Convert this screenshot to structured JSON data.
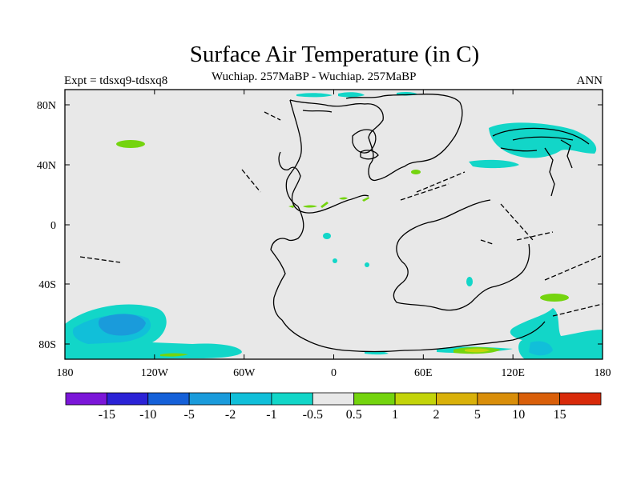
{
  "header": {
    "title": "Surface Air Temperature (in C)",
    "subtitle": "Wuchiap. 257MaBP - Wuchiap. 257MaBP",
    "left_label": "Expt = tdsxq9-tdsxq8",
    "right_label": "ANN"
  },
  "map": {
    "lon_ticks": [
      "180",
      "120W",
      "60W",
      "0",
      "60E",
      "120E",
      "180"
    ],
    "lat_ticks": [
      "80N",
      "40N",
      "0",
      "40S",
      "80S"
    ]
  },
  "colorbar": {
    "labels": [
      "-15",
      "-10",
      "-5",
      "-2",
      "-1",
      "-0.5",
      "0.5",
      "1",
      "2",
      "5",
      "10",
      "15"
    ],
    "colors": [
      "#7b16d8",
      "#2b22d6",
      "#1560d8",
      "#1a9bdb",
      "#11bfd9",
      "#12d6c8",
      "#e8e8e8",
      "#74d40e",
      "#c3d40a",
      "#d9b10a",
      "#d98e0a",
      "#d95f0a",
      "#d82a0a"
    ]
  },
  "colors": {
    "background": "#e8e8e8",
    "cool_light": "#12d6c8",
    "cool_mid": "#11bfd9",
    "cool_strong": "#1a9bdb",
    "warm_light": "#74d40e",
    "warm_mid": "#c3d40a",
    "coast": "#000000"
  }
}
